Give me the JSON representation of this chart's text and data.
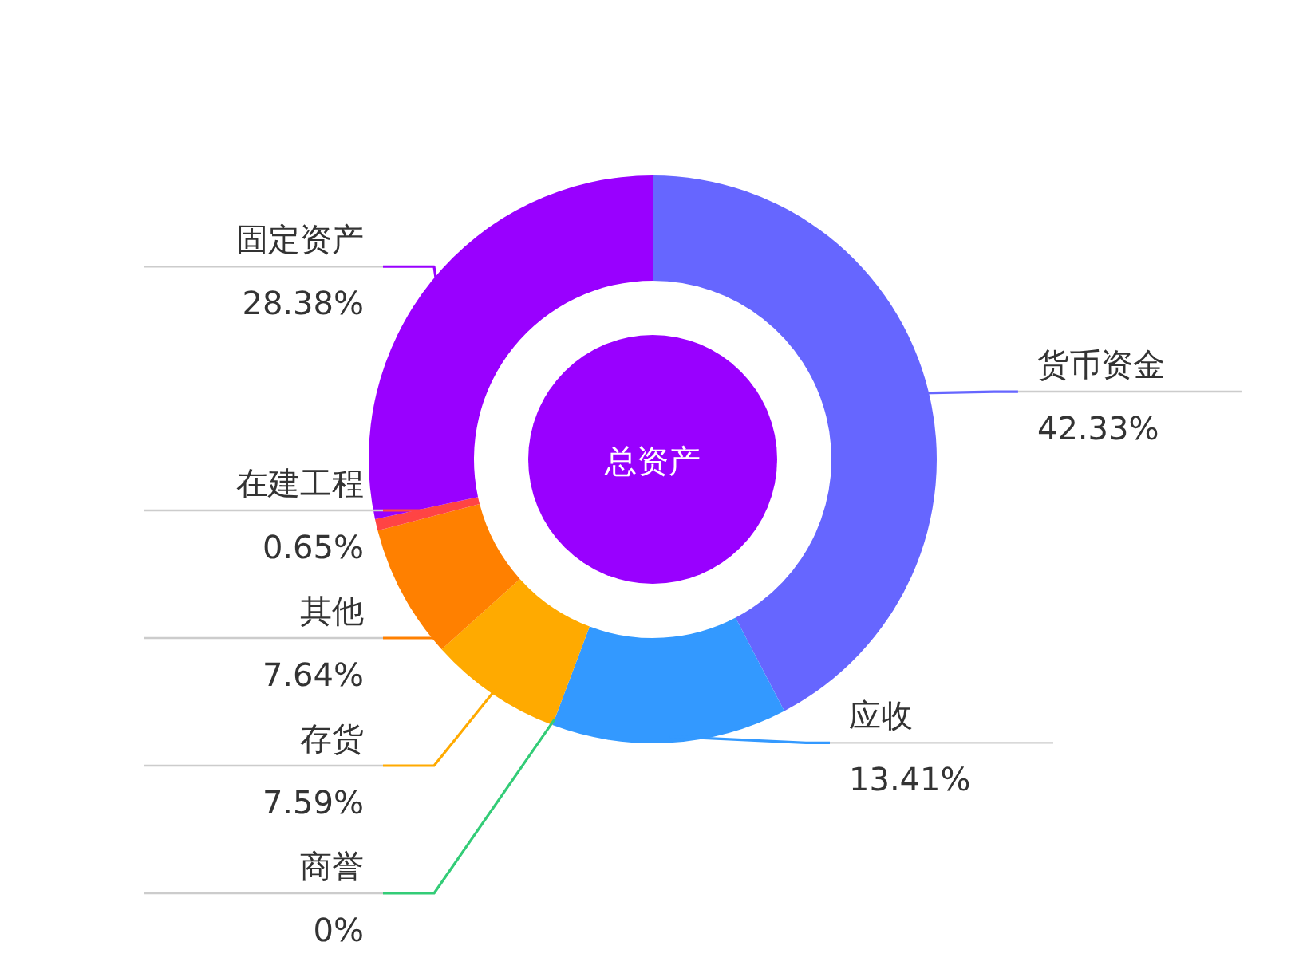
{
  "chart_data": {
    "type": "donut",
    "categories": [
      "货币资金",
      "应收",
      "商誉",
      "存货",
      "其他",
      "在建工程",
      "固定资产"
    ],
    "values": [
      42.33,
      13.41,
      0,
      7.59,
      7.64,
      0.65,
      28.38
    ],
    "colors": [
      "#6666ff",
      "#3399ff",
      "#33cc77",
      "#ffaa00",
      "#ff8000",
      "#ff4444",
      "#9900ff"
    ],
    "value_labels": [
      "42.33%",
      "13.41%",
      "0%",
      "7.59%",
      "7.64%",
      "0.65%",
      "28.38%"
    ],
    "annotations": [
      "总资产"
    ]
  }
}
